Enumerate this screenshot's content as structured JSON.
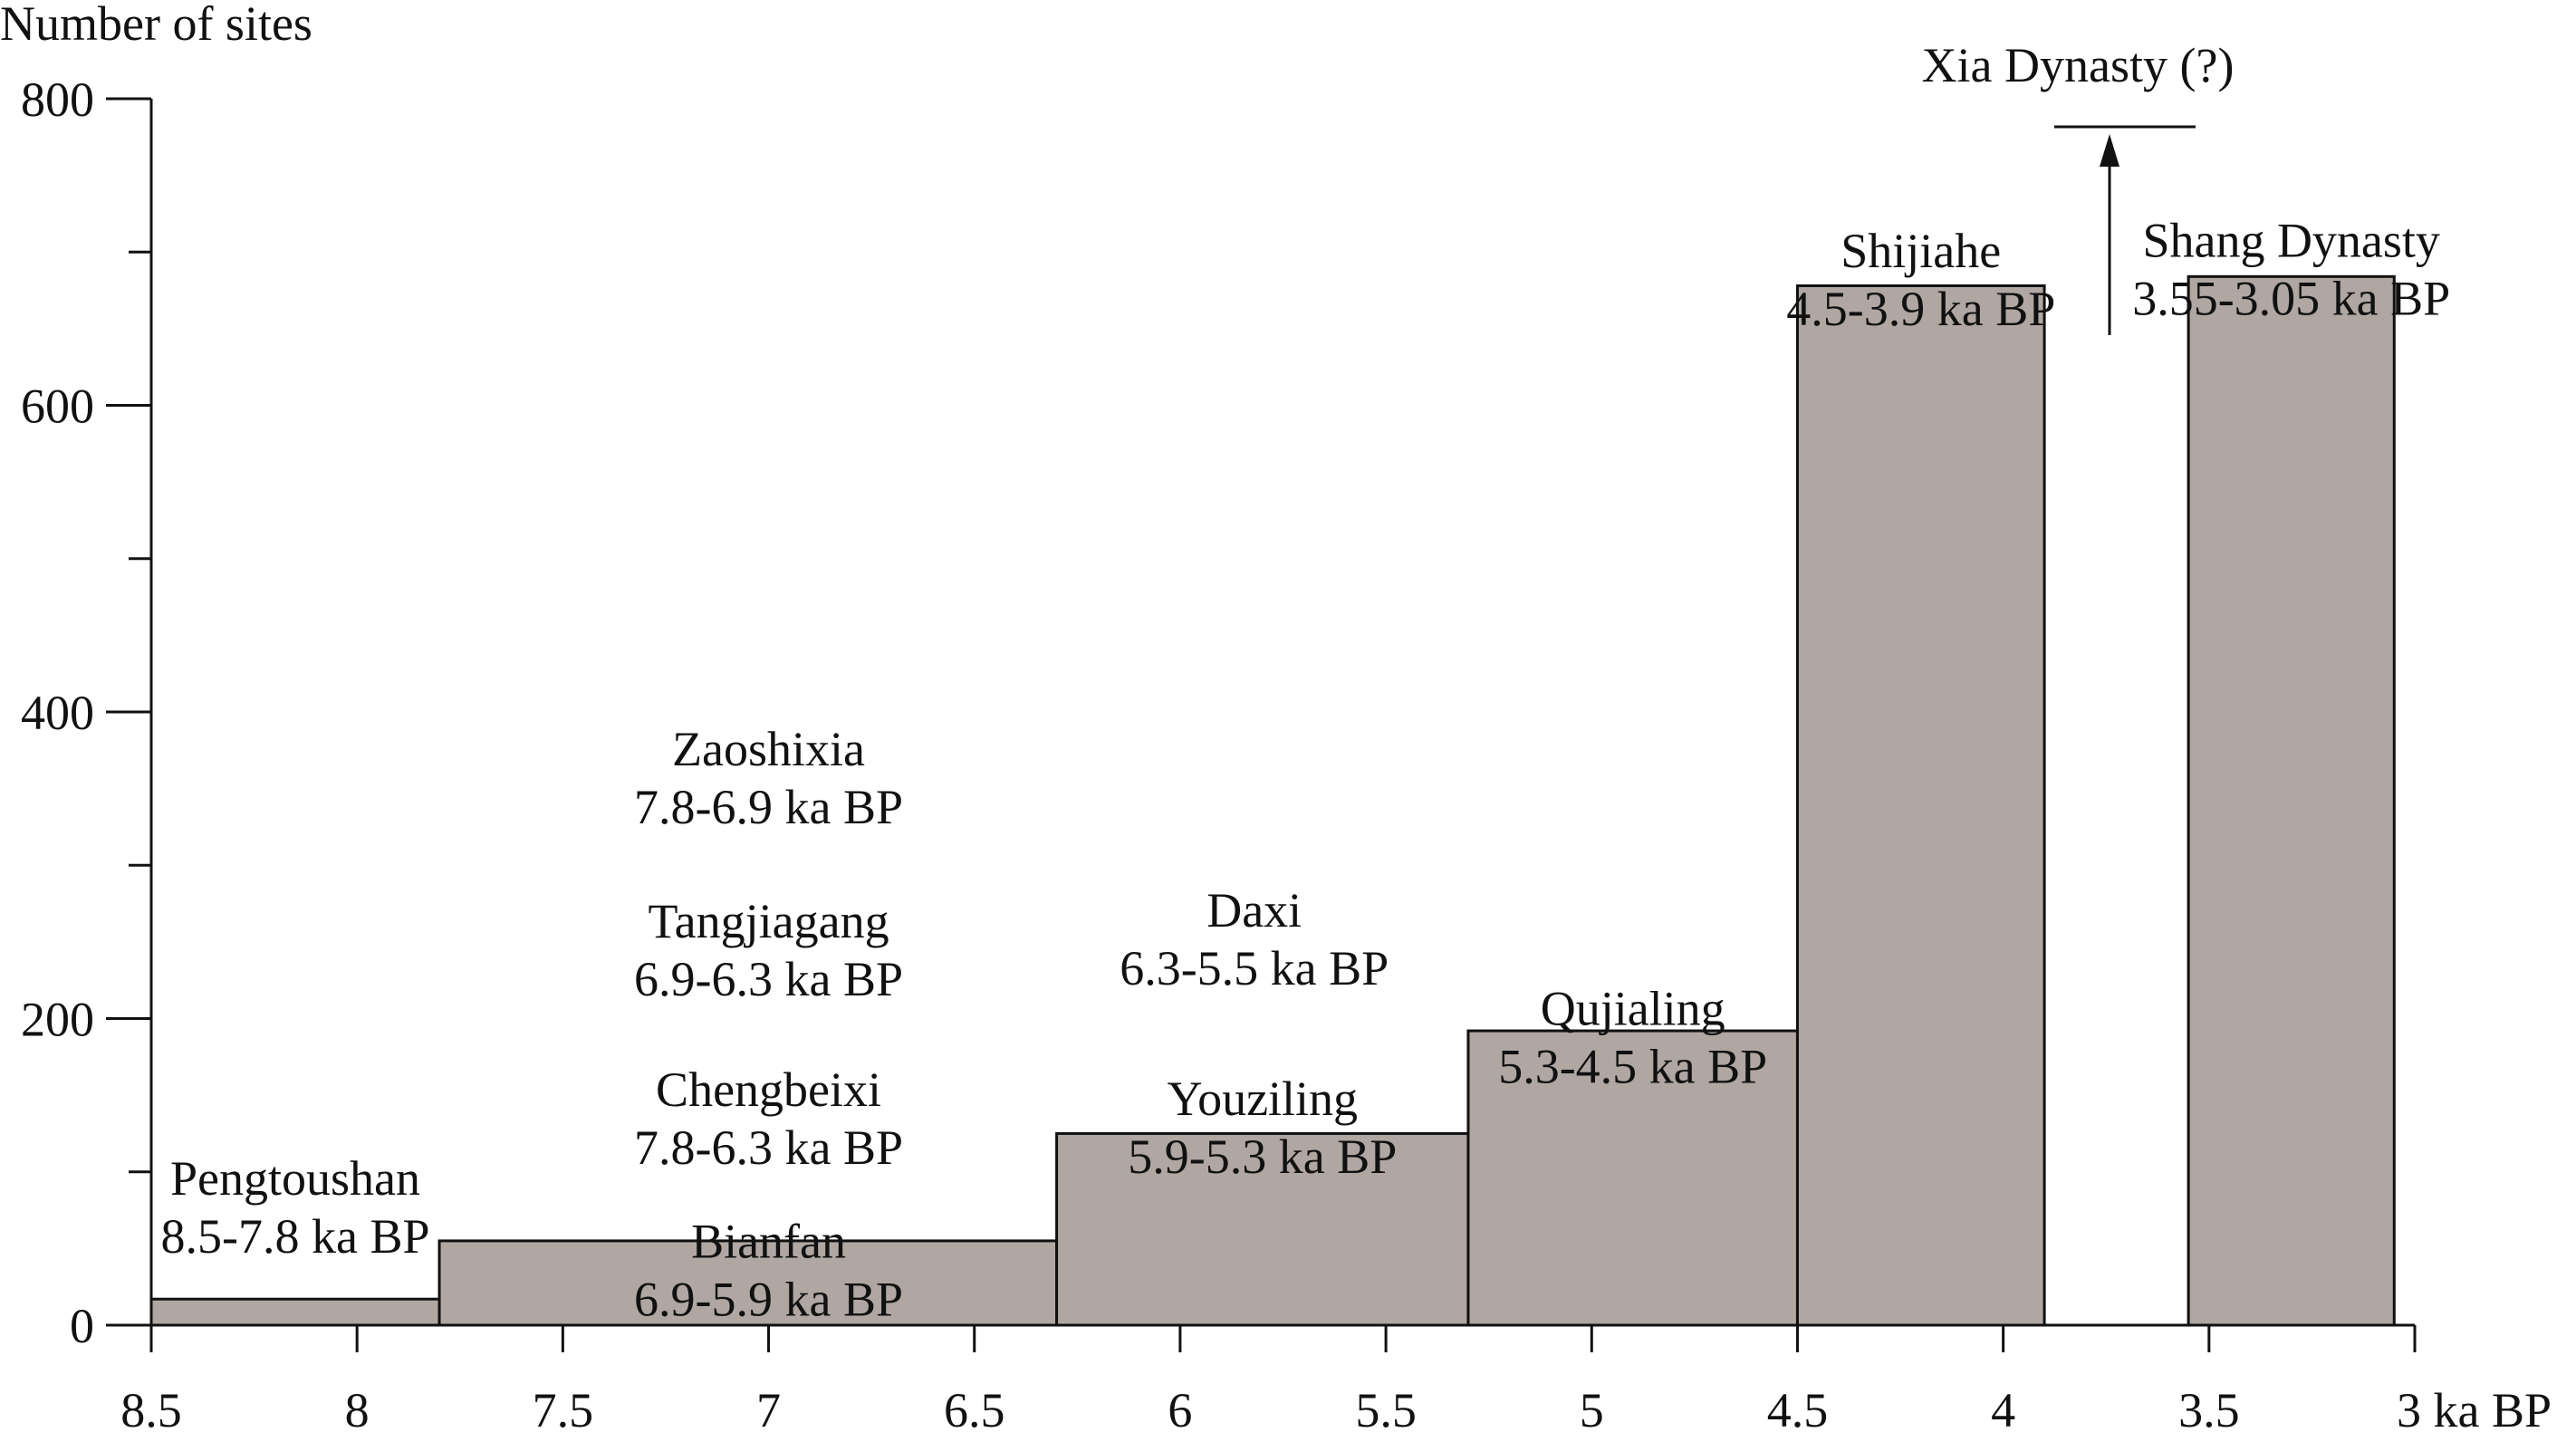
{
  "chart_data": {
    "type": "bar",
    "ylabel": "Number of sites",
    "ylim": [
      0,
      800
    ],
    "xlim": [
      8.5,
      3
    ],
    "x_reversed": true,
    "yticks": [
      "0",
      "200",
      "400",
      "600",
      "800"
    ],
    "xticks": [
      "8.5",
      "8",
      "7.5",
      "7",
      "6.5",
      "6",
      "5.5",
      "5",
      "4.5",
      "4",
      "3.5",
      "3 ka BP"
    ],
    "x_tick_values": [
      8.5,
      8,
      7.5,
      7,
      6.5,
      6,
      5.5,
      5,
      4.5,
      4,
      3.5,
      3
    ],
    "bars": [
      {
        "start": 8.5,
        "end": 7.8,
        "value": 17
      },
      {
        "start": 7.8,
        "end": 6.3,
        "value": 55
      },
      {
        "start": 6.3,
        "end": 5.3,
        "value": 125
      },
      {
        "start": 5.3,
        "end": 4.5,
        "value": 192
      },
      {
        "start": 4.5,
        "end": 3.9,
        "value": 678
      },
      {
        "start": 3.55,
        "end": 3.05,
        "value": 684
      }
    ],
    "cultures": [
      {
        "name": "Pengtoushan",
        "period": "8.5-7.8 ka BP",
        "x": 8.15,
        "y": 85
      },
      {
        "name": "Zaoshixia",
        "period": "7.8-6.9 ka BP",
        "x": 7.0,
        "y": 365
      },
      {
        "name": "Tangjiagang",
        "period": "6.9-6.3 ka BP",
        "x": 7.0,
        "y": 253
      },
      {
        "name": "Chengbeixi",
        "period": "7.8-6.3 ka BP",
        "x": 7.0,
        "y": 143
      },
      {
        "name": "Bianfan",
        "period": "6.9-5.9 ka BP",
        "x": 7.0,
        "y": 44
      },
      {
        "name": "Daxi",
        "period": "6.3-5.5 ka BP",
        "x": 5.82,
        "y": 260
      },
      {
        "name": "Youziling",
        "period": "5.9-5.3 ka BP",
        "x": 5.8,
        "y": 137
      },
      {
        "name": "Qujialing",
        "period": "5.3-4.5 ka BP",
        "x": 4.9,
        "y": 196
      },
      {
        "name": "Shijiahe",
        "period": "4.5-3.9 ka BP",
        "x": 4.2,
        "y": 690
      },
      {
        "name": "Shang Dynasty",
        "period": "3.55-3.05 ka BP",
        "x": 3.3,
        "y": 697
      }
    ],
    "annotation": {
      "text": "Xia Dynasty (?)",
      "x": 3.75,
      "y": 814
    },
    "bar_color": "#b0a7a2",
    "edge_color": "#111111"
  }
}
